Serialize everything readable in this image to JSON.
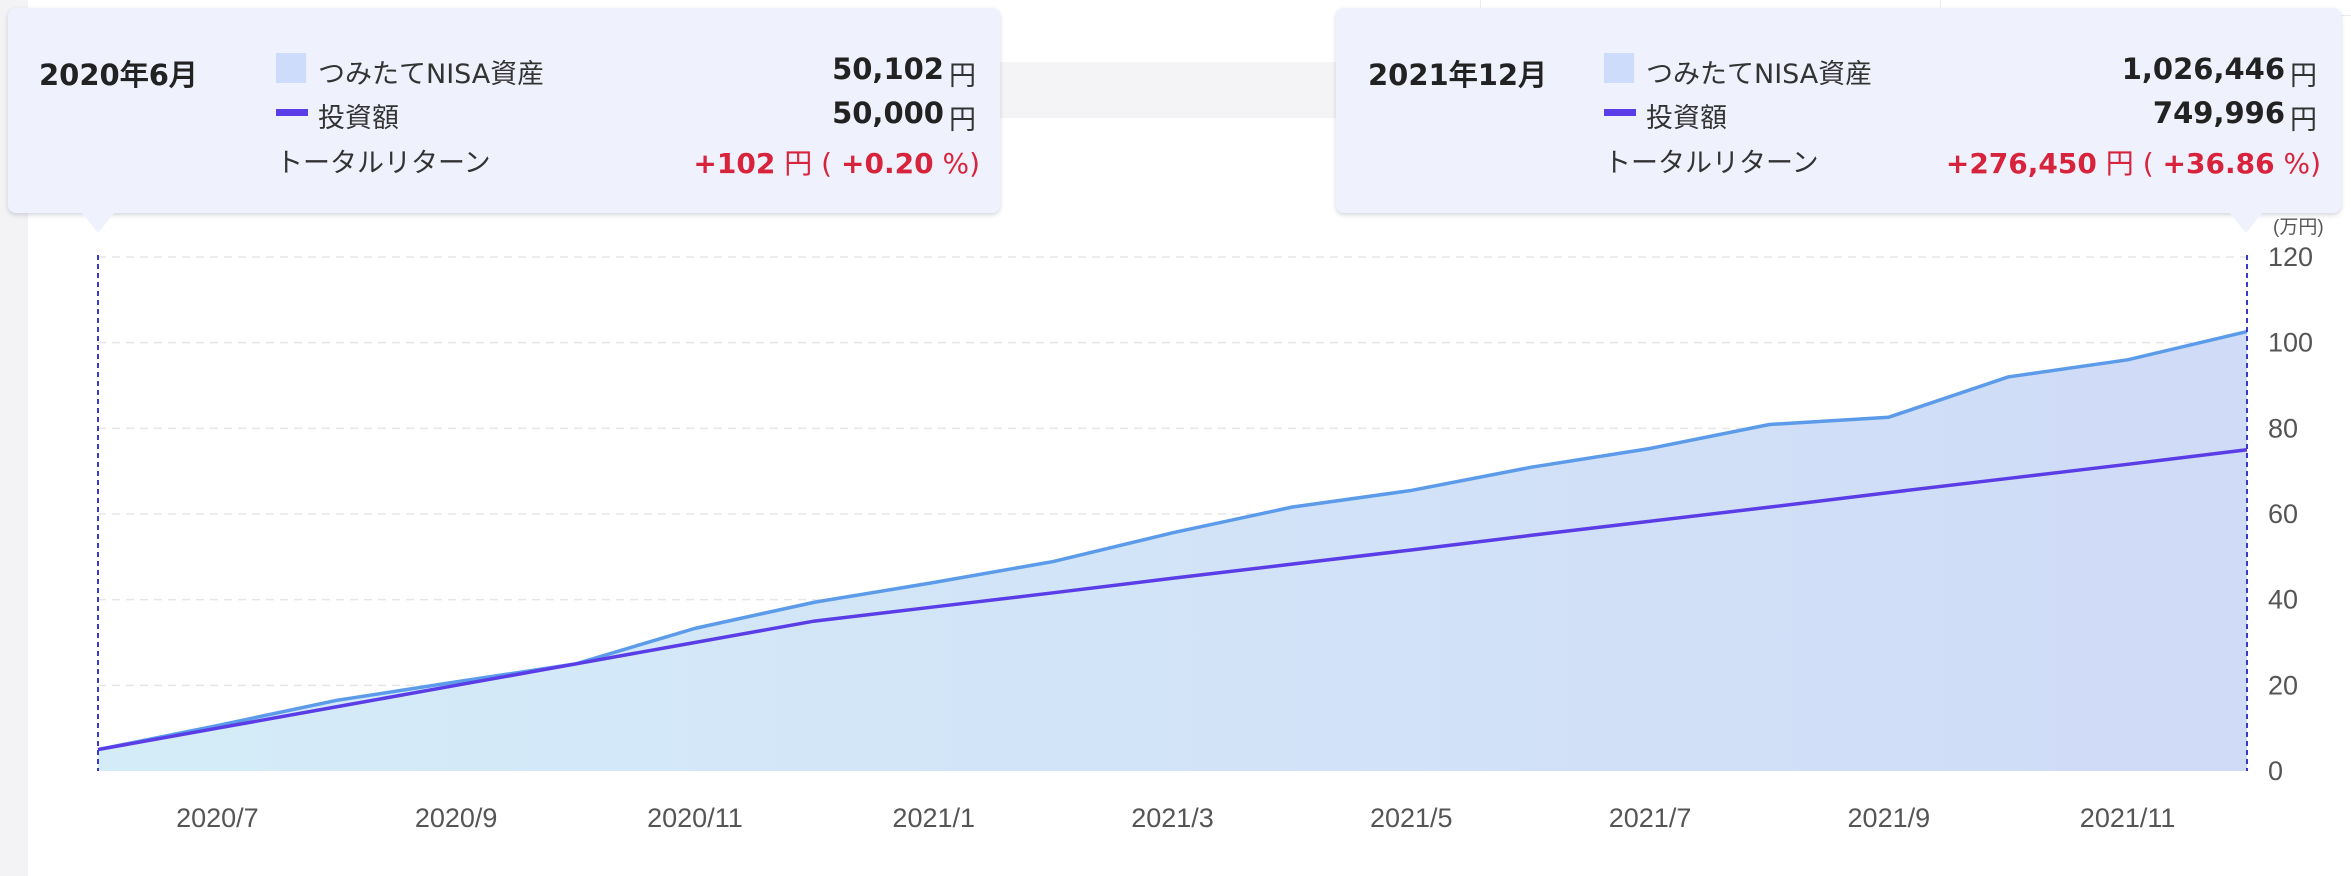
{
  "chart_data": {
    "type": "area",
    "y_unit": "(万円)",
    "ylim": [
      0,
      120
    ],
    "y_ticks": [
      0,
      20,
      40,
      60,
      80,
      100,
      120
    ],
    "x_tick_labels": [
      "2020/7",
      "2020/9",
      "2020/11",
      "2021/1",
      "2021/3",
      "2021/5",
      "2021/7",
      "2021/9",
      "2021/11"
    ],
    "x": [
      "2020/6",
      "2020/7",
      "2020/8",
      "2020/9",
      "2020/10",
      "2020/11",
      "2020/12",
      "2021/1",
      "2021/2",
      "2021/3",
      "2021/4",
      "2021/5",
      "2021/6",
      "2021/7",
      "2021/8",
      "2021/9",
      "2021/10",
      "2021/11",
      "2021/12"
    ],
    "grid": true,
    "series": [
      {
        "name": "つみたてNISA資産",
        "style": "area",
        "color": "#5b9bea",
        "values": [
          5.0,
          10.6,
          16.5,
          20.8,
          25.0,
          33.3,
          39.4,
          44.0,
          48.9,
          55.6,
          61.6,
          65.5,
          70.9,
          75.3,
          80.9,
          82.6,
          92.0,
          96.0,
          102.6
        ]
      },
      {
        "name": "投資額",
        "style": "line",
        "color": "#5a3de6",
        "values": [
          5.0,
          10.0,
          15.0,
          20.0,
          25.0,
          30.0,
          35.0,
          38.3,
          41.6,
          45.0,
          48.3,
          51.6,
          55.0,
          58.3,
          61.6,
          65.0,
          68.3,
          71.6,
          75.0
        ]
      }
    ]
  },
  "tooltips": {
    "left": {
      "date": "2020年6月",
      "asset_label": "つみたてNISA資産",
      "asset_value": "50,102",
      "invest_label": "投資額",
      "invest_value": "50,000",
      "return_label": "トータルリターン",
      "unit": "円",
      "return_value": "+102",
      "return_paren_open": "(",
      "return_pct": "+0.20",
      "return_pct_unit": "%)"
    },
    "right": {
      "date": "2021年12月",
      "asset_label": "つみたてNISA資産",
      "asset_value": "1,026,446",
      "invest_label": "投資額",
      "invest_value": "749,996",
      "return_label": "トータルリターン",
      "unit": "円",
      "return_value": "+276,450",
      "return_paren_open": "(",
      "return_pct": "+36.86",
      "return_pct_unit": "%)"
    }
  },
  "colors": {
    "tooltip_bg": "#eff2fd",
    "return_red": "#d7243c",
    "asset_line": "#5b9bea",
    "invest_line": "#5a3de6",
    "cursor_line": "#3a3ad0"
  }
}
